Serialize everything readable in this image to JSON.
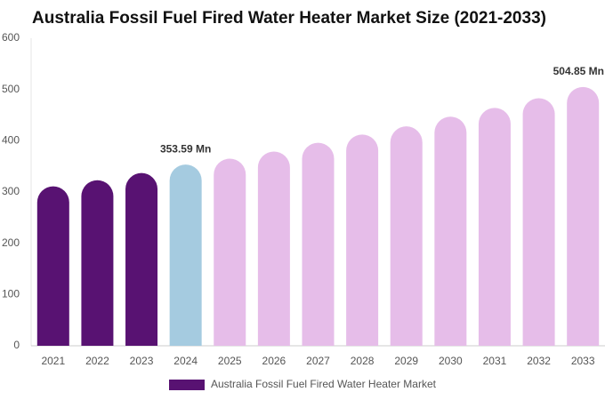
{
  "chart_data": {
    "type": "bar",
    "title": "Australia Fossil Fuel Fired Water Heater Market Size (2021-2033)",
    "categories": [
      "2021",
      "2022",
      "2023",
      "2024",
      "2025",
      "2026",
      "2027",
      "2028",
      "2029",
      "2030",
      "2031",
      "2032",
      "2033"
    ],
    "series": [
      {
        "name": "Australia Fossil Fuel Fired Water Heater Market",
        "color": "#581272",
        "values": [
          311,
          323,
          337,
          353.59,
          365,
          379,
          396,
          412,
          428,
          447,
          464,
          483,
          504.85
        ],
        "value_labels": [
          null,
          null,
          null,
          "353.59 Mn",
          null,
          null,
          null,
          null,
          null,
          null,
          null,
          null,
          "504.85 Mn"
        ],
        "colors": [
          "#581272",
          "#581272",
          "#581272",
          "#a5cbe0",
          "#e6bde9",
          "#e6bde9",
          "#e6bde9",
          "#e6bde9",
          "#e6bde9",
          "#e6bde9",
          "#e6bde9",
          "#e6bde9",
          "#e6bde9"
        ]
      }
    ],
    "ylim": [
      0,
      600
    ],
    "yticks": [
      0,
      100,
      200,
      300,
      400,
      500,
      600
    ],
    "grid": false,
    "legend": "bottom"
  }
}
